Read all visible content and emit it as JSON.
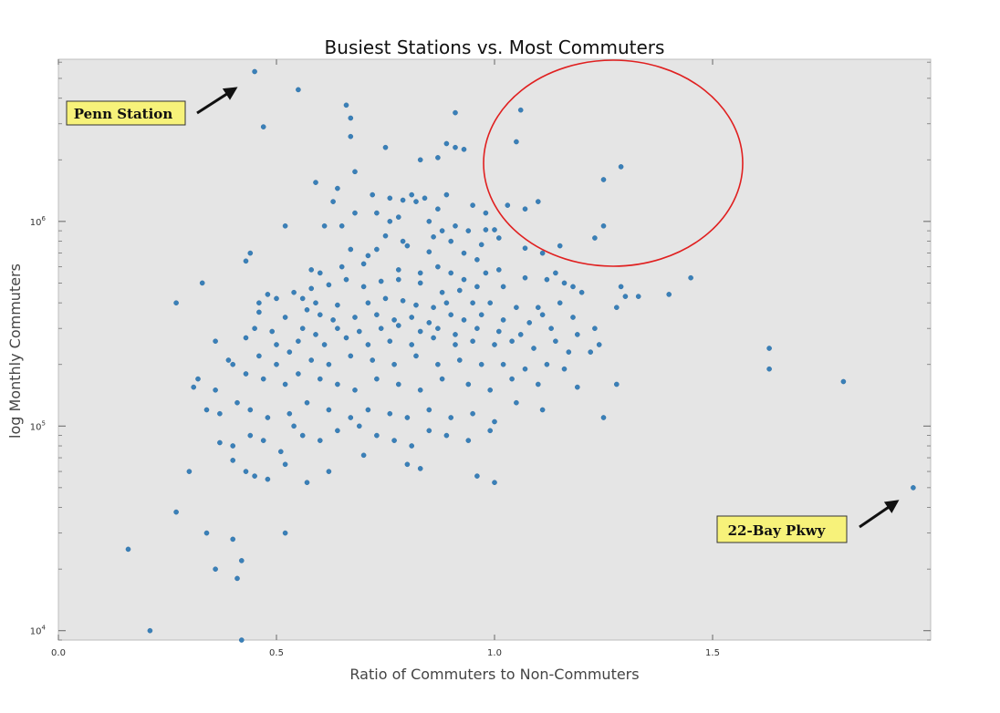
{
  "chart_data": {
    "type": "scatter",
    "title": "Busiest Stations vs. Most Commuters",
    "xlabel": "Ratio of Commuters to Non-Commuters",
    "ylabel": "log Monthly Commuters",
    "xlim": [
      0.0,
      2.0
    ],
    "ylim": [
      9000,
      6200000
    ],
    "yscale": "log",
    "grid": false,
    "x_ticks": [
      {
        "value": 0.0,
        "label": "0.0"
      },
      {
        "value": 0.5,
        "label": "0.5"
      },
      {
        "value": 1.0,
        "label": "1.0"
      },
      {
        "value": 1.5,
        "label": "1.5"
      }
    ],
    "y_ticks": [
      {
        "value": 10000,
        "base": "10",
        "exp": "4"
      },
      {
        "value": 100000,
        "base": "10",
        "exp": "5"
      },
      {
        "value": 1000000,
        "base": "10",
        "exp": "6"
      }
    ],
    "colors": {
      "background": "#e5e5e5",
      "marker": "#3a80b8",
      "highlight": "#e02020",
      "note_fill": "#f7f27a"
    },
    "annotations": [
      {
        "text": "Penn Station",
        "point": [
          0.45,
          5400000
        ]
      },
      {
        "text": "22-Bay Pkwy",
        "point": [
          1.96,
          50000
        ]
      }
    ],
    "highlight_region": {
      "center": [
        1.27,
        1950000
      ],
      "shape": "ellipse"
    },
    "points": [
      [
        0.45,
        5400000
      ],
      [
        0.55,
        4400000
      ],
      [
        0.47,
        2900000
      ],
      [
        0.66,
        3700000
      ],
      [
        0.67,
        3200000
      ],
      [
        0.91,
        3400000
      ],
      [
        1.06,
        3500000
      ],
      [
        0.67,
        2600000
      ],
      [
        0.89,
        2400000
      ],
      [
        0.91,
        2300000
      ],
      [
        0.93,
        2250000
      ],
      [
        1.05,
        2450000
      ],
      [
        1.29,
        1850000
      ],
      [
        1.25,
        1600000
      ],
      [
        0.75,
        2300000
      ],
      [
        0.83,
        2000000
      ],
      [
        0.87,
        2050000
      ],
      [
        0.68,
        1750000
      ],
      [
        0.64,
        1450000
      ],
      [
        0.59,
        1550000
      ],
      [
        0.72,
        1350000
      ],
      [
        0.76,
        1300000
      ],
      [
        0.79,
        1270000
      ],
      [
        0.81,
        1350000
      ],
      [
        0.84,
        1300000
      ],
      [
        0.89,
        1350000
      ],
      [
        0.95,
        1200000
      ],
      [
        0.98,
        1100000
      ],
      [
        0.87,
        1150000
      ],
      [
        0.73,
        1100000
      ],
      [
        0.78,
        1050000
      ],
      [
        0.82,
        1250000
      ],
      [
        1.03,
        1200000
      ],
      [
        1.07,
        1150000
      ],
      [
        1.1,
        1250000
      ],
      [
        0.63,
        1250000
      ],
      [
        0.68,
        1100000
      ],
      [
        0.76,
        1000000
      ],
      [
        0.61,
        950000
      ],
      [
        0.52,
        950000
      ],
      [
        0.65,
        950000
      ],
      [
        0.85,
        1000000
      ],
      [
        0.91,
        950000
      ],
      [
        0.94,
        900000
      ],
      [
        0.98,
        910000
      ],
      [
        1.0,
        910000
      ],
      [
        1.25,
        950000
      ],
      [
        1.23,
        830000
      ],
      [
        0.75,
        850000
      ],
      [
        0.79,
        800000
      ],
      [
        0.86,
        840000
      ],
      [
        0.88,
        900000
      ],
      [
        0.9,
        800000
      ],
      [
        0.97,
        770000
      ],
      [
        1.01,
        830000
      ],
      [
        1.15,
        760000
      ],
      [
        1.07,
        740000
      ],
      [
        0.44,
        700000
      ],
      [
        0.43,
        640000
      ],
      [
        0.73,
        730000
      ],
      [
        0.67,
        730000
      ],
      [
        0.71,
        680000
      ],
      [
        0.8,
        760000
      ],
      [
        0.85,
        710000
      ],
      [
        0.93,
        700000
      ],
      [
        0.96,
        650000
      ],
      [
        1.11,
        700000
      ],
      [
        0.58,
        580000
      ],
      [
        0.6,
        560000
      ],
      [
        0.65,
        600000
      ],
      [
        0.7,
        620000
      ],
      [
        0.78,
        580000
      ],
      [
        0.83,
        560000
      ],
      [
        0.87,
        600000
      ],
      [
        0.9,
        560000
      ],
      [
        0.93,
        520000
      ],
      [
        0.98,
        560000
      ],
      [
        1.01,
        580000
      ],
      [
        1.07,
        530000
      ],
      [
        1.12,
        520000
      ],
      [
        1.14,
        560000
      ],
      [
        1.18,
        480000
      ],
      [
        1.2,
        450000
      ],
      [
        1.3,
        430000
      ],
      [
        1.33,
        430000
      ],
      [
        1.4,
        440000
      ],
      [
        1.45,
        530000
      ],
      [
        1.29,
        480000
      ],
      [
        1.16,
        500000
      ],
      [
        1.02,
        480000
      ],
      [
        0.96,
        480000
      ],
      [
        0.92,
        460000
      ],
      [
        0.88,
        450000
      ],
      [
        0.83,
        500000
      ],
      [
        0.78,
        520000
      ],
      [
        0.74,
        510000
      ],
      [
        0.7,
        480000
      ],
      [
        0.66,
        520000
      ],
      [
        0.62,
        490000
      ],
      [
        0.58,
        470000
      ],
      [
        0.54,
        450000
      ],
      [
        0.5,
        420000
      ],
      [
        0.48,
        440000
      ],
      [
        0.46,
        400000
      ],
      [
        0.33,
        500000
      ],
      [
        0.27,
        400000
      ],
      [
        0.56,
        420000
      ],
      [
        0.59,
        400000
      ],
      [
        0.64,
        390000
      ],
      [
        0.71,
        400000
      ],
      [
        0.75,
        420000
      ],
      [
        0.79,
        410000
      ],
      [
        0.82,
        390000
      ],
      [
        0.86,
        380000
      ],
      [
        0.89,
        400000
      ],
      [
        0.95,
        400000
      ],
      [
        0.99,
        400000
      ],
      [
        1.05,
        380000
      ],
      [
        1.1,
        380000
      ],
      [
        1.15,
        400000
      ],
      [
        1.28,
        380000
      ],
      [
        0.46,
        360000
      ],
      [
        0.52,
        340000
      ],
      [
        0.57,
        370000
      ],
      [
        0.6,
        350000
      ],
      [
        0.63,
        330000
      ],
      [
        0.68,
        340000
      ],
      [
        0.73,
        350000
      ],
      [
        0.77,
        330000
      ],
      [
        0.81,
        340000
      ],
      [
        0.85,
        320000
      ],
      [
        0.9,
        350000
      ],
      [
        0.93,
        330000
      ],
      [
        0.97,
        350000
      ],
      [
        1.02,
        330000
      ],
      [
        1.08,
        320000
      ],
      [
        1.11,
        350000
      ],
      [
        1.18,
        340000
      ],
      [
        0.45,
        300000
      ],
      [
        0.49,
        290000
      ],
      [
        0.56,
        300000
      ],
      [
        0.59,
        280000
      ],
      [
        0.64,
        300000
      ],
      [
        0.69,
        290000
      ],
      [
        0.74,
        300000
      ],
      [
        0.78,
        310000
      ],
      [
        0.83,
        290000
      ],
      [
        0.87,
        300000
      ],
      [
        0.91,
        280000
      ],
      [
        0.96,
        300000
      ],
      [
        1.01,
        290000
      ],
      [
        1.06,
        280000
      ],
      [
        1.13,
        300000
      ],
      [
        1.19,
        280000
      ],
      [
        1.23,
        300000
      ],
      [
        0.36,
        260000
      ],
      [
        0.43,
        270000
      ],
      [
        0.5,
        250000
      ],
      [
        0.55,
        260000
      ],
      [
        0.61,
        250000
      ],
      [
        0.66,
        270000
      ],
      [
        0.71,
        250000
      ],
      [
        0.76,
        260000
      ],
      [
        0.81,
        250000
      ],
      [
        0.86,
        270000
      ],
      [
        0.91,
        250000
      ],
      [
        0.95,
        260000
      ],
      [
        1.0,
        250000
      ],
      [
        1.04,
        260000
      ],
      [
        1.09,
        240000
      ],
      [
        1.14,
        260000
      ],
      [
        1.17,
        230000
      ],
      [
        1.22,
        230000
      ],
      [
        1.24,
        250000
      ],
      [
        1.63,
        240000
      ],
      [
        0.39,
        210000
      ],
      [
        0.46,
        220000
      ],
      [
        0.5,
        200000
      ],
      [
        0.53,
        230000
      ],
      [
        0.58,
        210000
      ],
      [
        0.62,
        200000
      ],
      [
        0.67,
        220000
      ],
      [
        0.72,
        210000
      ],
      [
        0.77,
        200000
      ],
      [
        0.82,
        220000
      ],
      [
        0.87,
        200000
      ],
      [
        0.92,
        210000
      ],
      [
        0.97,
        200000
      ],
      [
        1.02,
        200000
      ],
      [
        1.07,
        190000
      ],
      [
        1.12,
        200000
      ],
      [
        1.16,
        190000
      ],
      [
        1.63,
        190000
      ],
      [
        0.31,
        155000
      ],
      [
        0.32,
        170000
      ],
      [
        0.36,
        150000
      ],
      [
        0.4,
        200000
      ],
      [
        0.43,
        180000
      ],
      [
        0.47,
        170000
      ],
      [
        0.52,
        160000
      ],
      [
        0.55,
        180000
      ],
      [
        0.6,
        170000
      ],
      [
        0.64,
        160000
      ],
      [
        0.68,
        150000
      ],
      [
        0.73,
        170000
      ],
      [
        0.78,
        160000
      ],
      [
        0.83,
        150000
      ],
      [
        0.88,
        170000
      ],
      [
        0.94,
        160000
      ],
      [
        0.99,
        150000
      ],
      [
        1.04,
        170000
      ],
      [
        1.1,
        160000
      ],
      [
        1.19,
        155000
      ],
      [
        1.28,
        160000
      ],
      [
        1.8,
        165000
      ],
      [
        0.34,
        120000
      ],
      [
        0.37,
        115000
      ],
      [
        0.41,
        130000
      ],
      [
        0.44,
        120000
      ],
      [
        0.48,
        110000
      ],
      [
        0.53,
        115000
      ],
      [
        0.57,
        130000
      ],
      [
        0.62,
        120000
      ],
      [
        0.67,
        110000
      ],
      [
        0.71,
        120000
      ],
      [
        0.76,
        115000
      ],
      [
        0.8,
        110000
      ],
      [
        0.85,
        120000
      ],
      [
        0.9,
        110000
      ],
      [
        0.95,
        115000
      ],
      [
        1.0,
        105000
      ],
      [
        1.05,
        130000
      ],
      [
        1.11,
        120000
      ],
      [
        1.25,
        110000
      ],
      [
        0.37,
        83000
      ],
      [
        0.4,
        80000
      ],
      [
        0.44,
        90000
      ],
      [
        0.47,
        85000
      ],
      [
        0.51,
        75000
      ],
      [
        0.54,
        100000
      ],
      [
        0.56,
        90000
      ],
      [
        0.6,
        85000
      ],
      [
        0.64,
        95000
      ],
      [
        0.69,
        100000
      ],
      [
        0.73,
        90000
      ],
      [
        0.77,
        85000
      ],
      [
        0.81,
        80000
      ],
      [
        0.85,
        95000
      ],
      [
        0.89,
        90000
      ],
      [
        0.94,
        85000
      ],
      [
        0.99,
        95000
      ],
      [
        0.4,
        68000
      ],
      [
        0.43,
        60000
      ],
      [
        0.45,
        57000
      ],
      [
        0.48,
        55000
      ],
      [
        0.52,
        65000
      ],
      [
        0.57,
        53000
      ],
      [
        0.62,
        60000
      ],
      [
        0.7,
        72000
      ],
      [
        0.8,
        65000
      ],
      [
        0.83,
        62000
      ],
      [
        0.96,
        57000
      ],
      [
        1.0,
        53000
      ],
      [
        0.3,
        60000
      ],
      [
        0.27,
        38000
      ],
      [
        0.34,
        30000
      ],
      [
        0.4,
        28000
      ],
      [
        0.42,
        22000
      ],
      [
        0.52,
        30000
      ],
      [
        0.16,
        25000
      ],
      [
        0.36,
        20000
      ],
      [
        0.41,
        18000
      ],
      [
        0.21,
        10000
      ],
      [
        0.42,
        9000
      ],
      [
        1.96,
        50000
      ]
    ]
  },
  "annotation_labels": {
    "penn": "Penn Station",
    "bay": "22-Bay Pkwy"
  }
}
